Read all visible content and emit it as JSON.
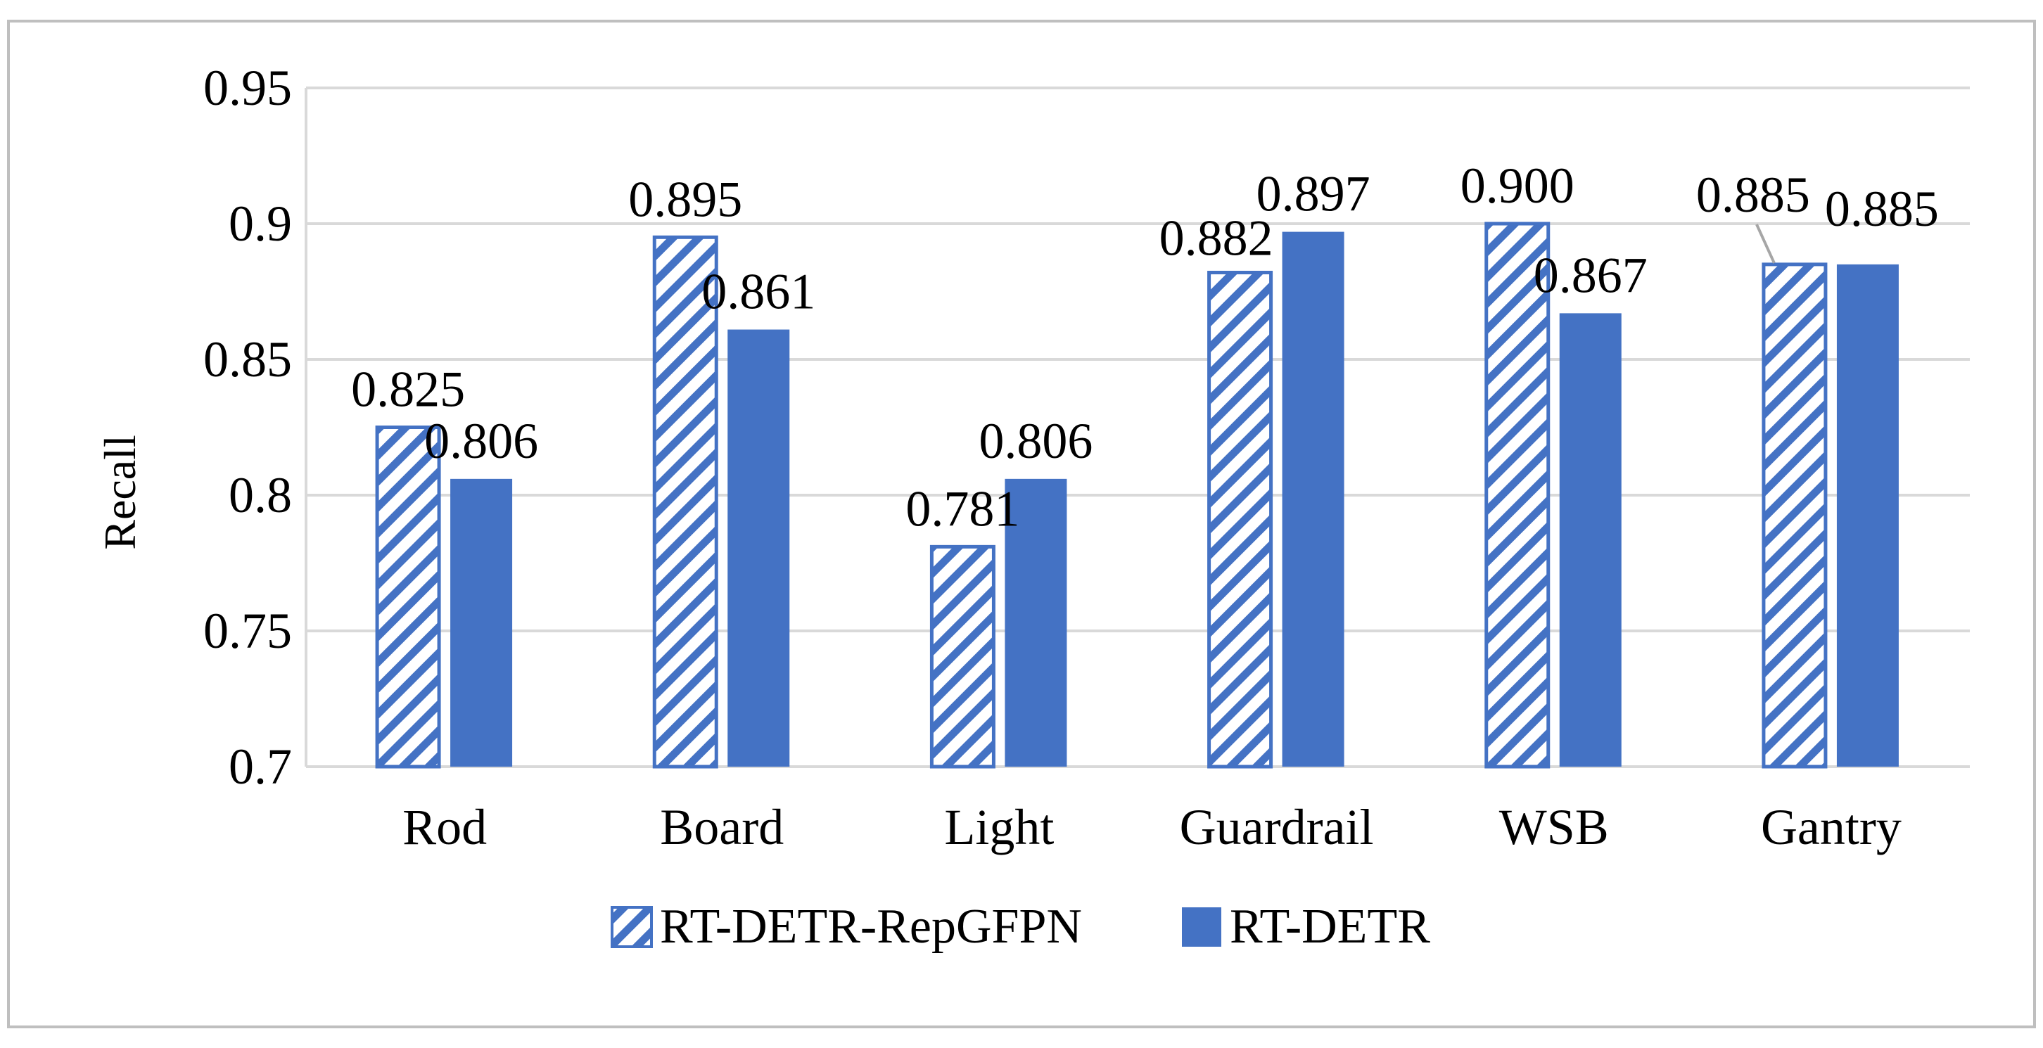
{
  "colors": {
    "primary": "#4472C4",
    "hatch_background": "#ffffff",
    "gridline": "#d9d9d9",
    "frame": "#bfbfbf"
  },
  "chart_data": {
    "type": "bar",
    "title": "",
    "xlabel": "",
    "ylabel": "Recall",
    "ylim": [
      0.7,
      0.95
    ],
    "yticks": [
      0.7,
      0.75,
      0.8,
      0.85,
      0.9,
      0.95
    ],
    "ytick_labels": [
      "0.7",
      "0.75",
      "0.8",
      "0.85",
      "0.9",
      "0.95"
    ],
    "grid": true,
    "legend_position": "bottom-center",
    "categories": [
      "Rod",
      "Board",
      "Light",
      "Guardrail",
      "WSB",
      "Gantry"
    ],
    "series": [
      {
        "name": "RT-DETR-RepGFPN",
        "pattern": "diagonal-hatch",
        "values": [
          0.825,
          0.895,
          0.781,
          0.882,
          0.9,
          0.885
        ],
        "labels": [
          "0.825",
          "0.895",
          "0.781",
          "0.882",
          "0.900",
          "0.885"
        ]
      },
      {
        "name": "RT-DETR",
        "pattern": "solid",
        "values": [
          0.806,
          0.861,
          0.806,
          0.897,
          0.867,
          0.885
        ],
        "labels": [
          "0.806",
          "0.861",
          "0.806",
          "0.897",
          "0.867",
          "0.885"
        ]
      }
    ]
  }
}
